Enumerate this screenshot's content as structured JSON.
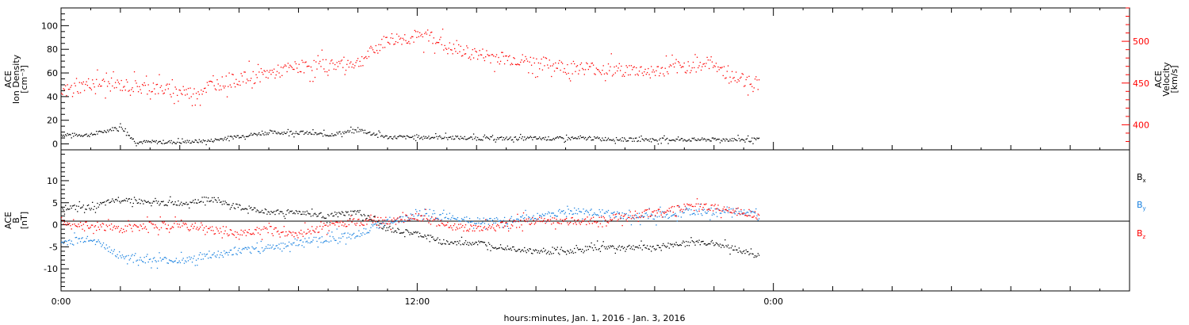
{
  "chart_data": [
    {
      "type": "scatter",
      "panel": "top",
      "ylabel_left": [
        "ACE",
        "Ion Density",
        "[cm⁻³]"
      ],
      "ylabel_right": [
        "ACE",
        "Velocity",
        "[km/s]"
      ],
      "ylim_left": [
        -5,
        115
      ],
      "ylim_right": [
        370,
        540
      ],
      "yticks_left": [
        "0",
        "20",
        "40",
        "60",
        "80",
        "100"
      ],
      "yticks_right": [
        "400",
        "450",
        "500"
      ],
      "colors": {
        "density": "#000000",
        "velocity": "#ff0000"
      },
      "series": [
        {
          "x": [
            0,
            1,
            2,
            2.5,
            3,
            4,
            5,
            6,
            7,
            8,
            9,
            10,
            11,
            12,
            13,
            14,
            15,
            16,
            17,
            18,
            19,
            20,
            21,
            22,
            23,
            23.5
          ],
          "values": [
            8,
            8,
            15,
            2,
            2,
            2,
            3,
            7,
            10,
            10,
            8,
            12,
            6,
            6,
            6,
            5,
            5,
            5,
            5,
            5,
            4,
            4,
            4,
            4,
            4,
            4
          ]
        },
        {
          "x": [
            0,
            1,
            2,
            3,
            4,
            4.5,
            5,
            6,
            7,
            8,
            9,
            10,
            11,
            12,
            12.5,
            13,
            14,
            15,
            16,
            17,
            18,
            19,
            20,
            21,
            22,
            22.5,
            23,
            23.5
          ],
          "values": [
            440,
            450,
            448,
            445,
            440,
            438,
            448,
            455,
            462,
            470,
            472,
            475,
            503,
            505,
            508,
            492,
            485,
            480,
            475,
            470,
            468,
            466,
            464,
            470,
            475,
            458,
            455,
            450
          ]
        }
      ]
    },
    {
      "type": "scatter",
      "panel": "bottom",
      "ylabel_left": [
        "ACE",
        "B",
        "[nT]"
      ],
      "ylim": [
        -15,
        17
      ],
      "yticks": [
        "-10",
        "-5",
        "0",
        "5",
        "10"
      ],
      "legend": [
        "Bx",
        "By",
        "Bz"
      ],
      "colors": {
        "Bx": "#000000",
        "By": "#1a82e0",
        "Bz": "#ff0000"
      },
      "series": [
        {
          "x": [
            0,
            1,
            2,
            3,
            4,
            5,
            6,
            7,
            8,
            9,
            10,
            11,
            12,
            13,
            14,
            15,
            16,
            17,
            18,
            19,
            20,
            21,
            22,
            23,
            23.5
          ],
          "values": [
            4,
            4,
            6,
            5,
            5,
            6,
            4,
            3,
            3,
            2,
            3,
            -1,
            -2,
            -4,
            -4,
            -5,
            -6,
            -6,
            -5,
            -5,
            -5,
            -4,
            -4,
            -6,
            -7
          ]
        },
        {
          "x": [
            0,
            1,
            2,
            3,
            4,
            5,
            6,
            7,
            8,
            9,
            10,
            11,
            12,
            13,
            14,
            15,
            16,
            17,
            18,
            19,
            20,
            21,
            22,
            23,
            23.5
          ],
          "values": [
            -4,
            -3,
            -7,
            -8,
            -8,
            -7,
            -6,
            -5,
            -4,
            -3,
            -2,
            1,
            2,
            2,
            1,
            1,
            2,
            3,
            3,
            2,
            2,
            3,
            3,
            3,
            2
          ]
        },
        {
          "x": [
            0,
            1,
            2,
            3,
            4,
            5,
            6,
            7,
            8,
            9,
            10,
            11,
            12,
            13,
            14,
            15,
            16,
            17,
            18,
            19,
            20,
            21,
            22,
            23,
            23.5
          ],
          "values": [
            1,
            0,
            -1,
            0,
            0,
            -1,
            -2,
            -1,
            -2,
            0,
            1,
            1,
            2,
            0,
            -1,
            0,
            1,
            1,
            1,
            2,
            3,
            4,
            4,
            3,
            2
          ]
        }
      ]
    }
  ],
  "x_axis": {
    "range_hours": [
      0,
      36
    ],
    "tick_labels": [
      {
        "hour": 0,
        "label": "0:00"
      },
      {
        "hour": 12,
        "label": "12:00"
      },
      {
        "hour": 24,
        "label": "0:00"
      }
    ],
    "title": "hours:minutes, Jan.  1, 2016 - Jan.  3, 2016"
  },
  "legend_labels": {
    "bx": "B",
    "bx_sub": "x",
    "by": "B",
    "by_sub": "y",
    "bz": "B",
    "bz_sub": "z"
  }
}
